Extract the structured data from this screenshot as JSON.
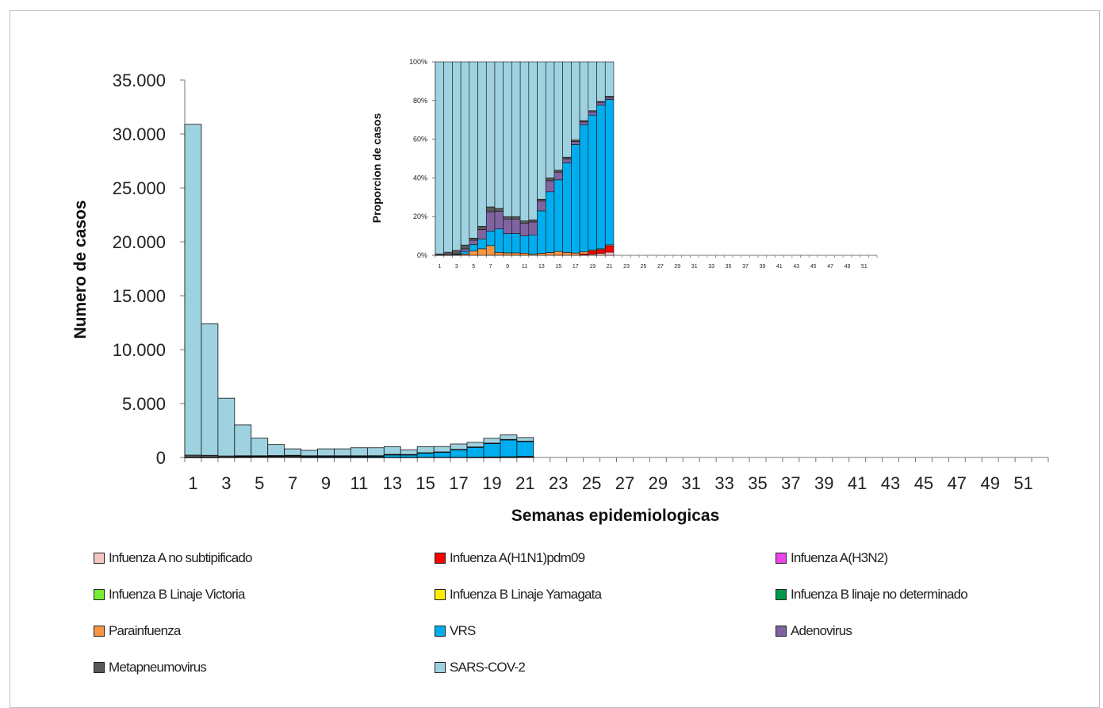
{
  "chart_data": [
    {
      "type": "stacked-bar",
      "role": "main",
      "xlabel": "Semanas epidemiologicas",
      "ylabel": "Numero de casos",
      "ylim": [
        0,
        35000
      ],
      "yticks": [
        "0",
        "5.000",
        "10.000",
        "15.000",
        "20.000",
        "25.000",
        "30.000",
        "35.000"
      ],
      "xticks": [
        "1",
        "3",
        "5",
        "7",
        "9",
        "11",
        "13",
        "15",
        "17",
        "19",
        "21",
        "23",
        "25",
        "27",
        "29",
        "31",
        "33",
        "35",
        "37",
        "39",
        "41",
        "43",
        "45",
        "47",
        "49",
        "51"
      ],
      "weeks_total": 52,
      "x": [
        1,
        2,
        3,
        4,
        5,
        6,
        7,
        8,
        9,
        10,
        11,
        12,
        13,
        14,
        15,
        16,
        17,
        18,
        19,
        20,
        21
      ],
      "series": [
        {
          "name": "Infuenza A no subtipificado",
          "color": "#f4c7c3",
          "values": [
            0,
            0,
            0,
            0,
            0,
            0,
            0,
            0,
            0,
            0,
            0,
            0,
            0,
            0,
            0,
            0,
            0,
            0,
            10,
            20,
            30
          ]
        },
        {
          "name": "Infuenza A(H1N1)pdm09",
          "color": "#ff0000",
          "values": [
            0,
            0,
            0,
            0,
            0,
            0,
            0,
            0,
            0,
            0,
            0,
            0,
            0,
            0,
            0,
            0,
            0,
            10,
            30,
            40,
            60
          ]
        },
        {
          "name": "Infuenza A(H3N2)",
          "color": "#ee44ee",
          "values": [
            0,
            0,
            0,
            0,
            0,
            0,
            0,
            0,
            0,
            0,
            0,
            0,
            0,
            0,
            0,
            0,
            0,
            0,
            0,
            0,
            0
          ]
        },
        {
          "name": "Infuenza B Linaje Victoria",
          "color": "#77ee33",
          "values": [
            0,
            0,
            0,
            0,
            0,
            0,
            0,
            0,
            0,
            0,
            0,
            0,
            0,
            0,
            0,
            0,
            0,
            0,
            0,
            0,
            0
          ]
        },
        {
          "name": "Infuenza B Linaje Yamagata",
          "color": "#ffee00",
          "values": [
            0,
            0,
            0,
            0,
            0,
            0,
            0,
            0,
            0,
            0,
            0,
            0,
            0,
            0,
            0,
            0,
            0,
            0,
            0,
            0,
            0
          ]
        },
        {
          "name": "Infuenza B linaje no determinado",
          "color": "#00994c",
          "values": [
            0,
            0,
            0,
            0,
            0,
            0,
            0,
            0,
            0,
            0,
            0,
            0,
            0,
            0,
            0,
            0,
            0,
            0,
            0,
            0,
            0
          ]
        },
        {
          "name": "Parainfuenza",
          "color": "#f79646",
          "values": [
            0,
            0,
            0,
            20,
            40,
            40,
            40,
            10,
            10,
            10,
            10,
            5,
            10,
            10,
            20,
            15,
            15,
            15,
            10,
            10,
            10
          ]
        },
        {
          "name": "VRS",
          "color": "#00aeef",
          "values": [
            10,
            10,
            20,
            40,
            60,
            60,
            60,
            80,
            80,
            80,
            80,
            90,
            220,
            220,
            370,
            470,
            700,
            920,
            1240,
            1560,
            1390
          ]
        },
        {
          "name": "Adenovirus",
          "color": "#8064a2",
          "values": [
            10,
            10,
            20,
            40,
            40,
            60,
            80,
            60,
            60,
            60,
            60,
            60,
            50,
            40,
            40,
            20,
            20,
            20,
            30,
            30,
            20
          ]
        },
        {
          "name": "Metapneumovirus",
          "color": "#595959",
          "values": [
            200,
            180,
            100,
            60,
            20,
            20,
            20,
            10,
            10,
            10,
            10,
            10,
            10,
            10,
            10,
            10,
            10,
            10,
            10,
            10,
            10
          ]
        },
        {
          "name": "SARS-COV-2",
          "color": "#9fd2e0",
          "values": [
            30680,
            12200,
            5360,
            2860,
            1640,
            1020,
            600,
            500,
            640,
            640,
            740,
            735,
            710,
            420,
            560,
            500,
            505,
            425,
            450,
            430,
            330
          ]
        }
      ]
    },
    {
      "type": "stacked-bar",
      "role": "inset",
      "percent": true,
      "ylabel": "Proporcion de casos",
      "ylim": [
        0,
        100
      ],
      "yticks": [
        "0%",
        "20%",
        "40%",
        "60%",
        "80%",
        "100%"
      ],
      "xticks": [
        "1",
        "3",
        "5",
        "7",
        "9",
        "11",
        "13",
        "15",
        "17",
        "19",
        "21",
        "23",
        "25",
        "27",
        "29",
        "31",
        "33",
        "35",
        "37",
        "39",
        "41",
        "43",
        "45",
        "47",
        "49",
        "51"
      ],
      "weeks_total": 52
    }
  ]
}
